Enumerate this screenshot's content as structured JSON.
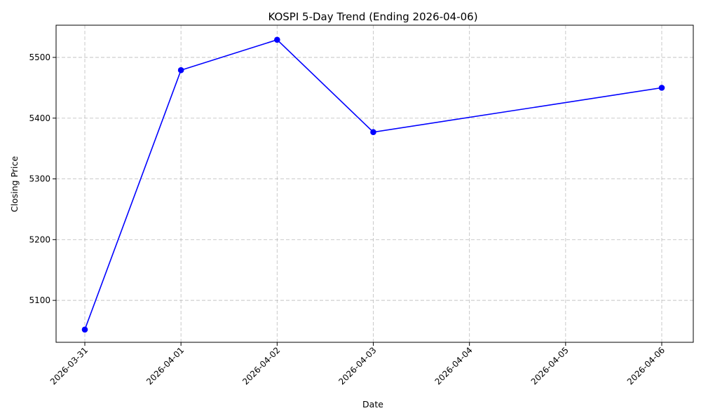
{
  "chart_data": {
    "type": "line",
    "title": "KOSPI 5-Day Trend (Ending 2026-04-06)",
    "xlabel": "Date",
    "ylabel": "Closing Price",
    "x_ticks": [
      "2026-03-31",
      "2026-04-01",
      "2026-04-02",
      "2026-04-03",
      "2026-04-04",
      "2026-04-05",
      "2026-04-06"
    ],
    "y_ticks": [
      5100,
      5200,
      5300,
      5400,
      5500
    ],
    "ylim": [
      5031,
      5553
    ],
    "grid": true,
    "series": [
      {
        "color": "#0000ff",
        "marker": "circle",
        "points": [
          {
            "x": "2026-03-31",
            "y": 5052
          },
          {
            "x": "2026-04-01",
            "y": 5479
          },
          {
            "x": "2026-04-02",
            "y": 5529
          },
          {
            "x": "2026-04-03",
            "y": 5377
          },
          {
            "x": "2026-04-06",
            "y": 5450
          }
        ]
      }
    ]
  }
}
